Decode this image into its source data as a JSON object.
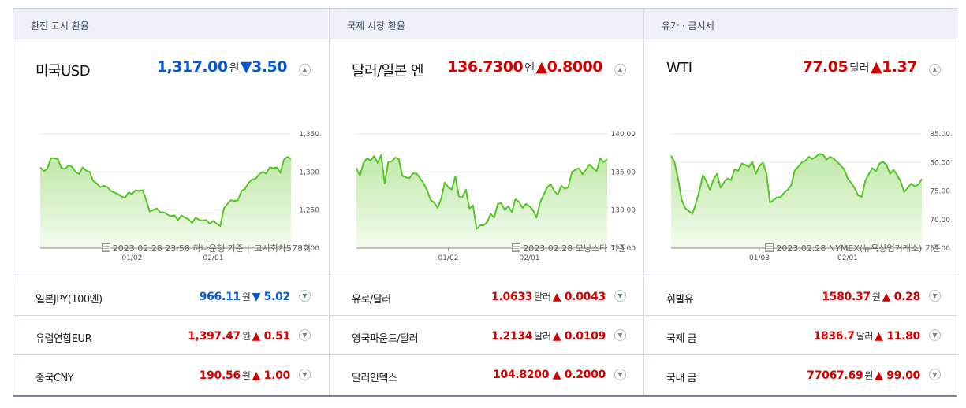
{
  "panels": [
    {
      "header": "환전 고시 환율",
      "main": {
        "name": "미국USD",
        "value": "1,317.00",
        "unit": "원",
        "arrow": "▼",
        "change": "3.50",
        "dir": "down"
      },
      "source": {
        "date": "2023.02.28 23:58",
        "text": "하나은행 기준",
        "extra": "고시회차578회"
      },
      "rows": [
        {
          "name": "일본JPY(100엔)",
          "value": "966.11",
          "unit": "원",
          "arrow": "▼",
          "change": "5.02",
          "dir": "down"
        },
        {
          "name": "유럽연합EUR",
          "value": "1,397.47",
          "unit": "원",
          "arrow": "▲",
          "change": "0.51",
          "dir": "up"
        },
        {
          "name": "중국CNY",
          "value": "190.56",
          "unit": "원",
          "arrow": "▲",
          "change": "1.00",
          "dir": "up"
        }
      ]
    },
    {
      "header": "국제 시장 환율",
      "main": {
        "name": "달러/일본 엔",
        "value": "136.7300",
        "unit": "엔",
        "arrow": "▲",
        "change": "0.8000",
        "dir": "up"
      },
      "source": {
        "date": "2023.02.28",
        "text": "모닝스타 기준",
        "extra": ""
      },
      "rows": [
        {
          "name": "유로/달러",
          "value": "1.0633",
          "unit": "달러",
          "arrow": "▲",
          "change": "0.0043",
          "dir": "up"
        },
        {
          "name": "영국파운드/달러",
          "value": "1.2134",
          "unit": "달러",
          "arrow": "▲",
          "change": "0.0109",
          "dir": "up"
        },
        {
          "name": "달러인덱스",
          "value": "104.8200",
          "unit": "",
          "arrow": "▲",
          "change": "0.2000",
          "dir": "up"
        }
      ]
    },
    {
      "header": "유가 · 금시세",
      "main": {
        "name": "WTI",
        "value": "77.05",
        "unit": "달러",
        "arrow": "▲",
        "change": "1.37",
        "dir": "up"
      },
      "source": {
        "date": "2023.02.28",
        "text": "NYMEX(뉴욕상업거래소) 기준",
        "extra": ""
      },
      "rows": [
        {
          "name": "휘발유",
          "value": "1580.37",
          "unit": "원",
          "arrow": "▲",
          "change": "0.28",
          "dir": "up"
        },
        {
          "name": "국제 금",
          "value": "1836.7",
          "unit": "달러",
          "arrow": "▲",
          "change": "11.80",
          "dir": "up"
        },
        {
          "name": "국내 금",
          "value": "77067.69",
          "unit": "원",
          "arrow": "▲",
          "change": "99.00",
          "dir": "up"
        }
      ]
    }
  ],
  "chart_data": [
    {
      "type": "area",
      "title": "",
      "yticks": [
        "1,350",
        "1,300",
        "1,250",
        "1,200"
      ],
      "ylim": [
        1200,
        1350
      ],
      "xticks": [
        {
          "label": "01/02",
          "index": 26
        },
        {
          "label": "02/01",
          "index": 49
        }
      ],
      "values": [
        1306,
        1301,
        1304,
        1318,
        1318,
        1317,
        1305,
        1304,
        1309,
        1307,
        1300,
        1297,
        1306,
        1302,
        1300,
        1288,
        1285,
        1280,
        1282,
        1280,
        1275,
        1273,
        1271,
        1268,
        1266,
        1273,
        1271,
        1276,
        1275,
        1276,
        1263,
        1248,
        1250,
        1252,
        1247,
        1247,
        1244,
        1242,
        1243,
        1237,
        1243,
        1240,
        1238,
        1233,
        1240,
        1237,
        1236,
        1237,
        1232,
        1236,
        1232,
        1229,
        1252,
        1258,
        1263,
        1262,
        1263,
        1275,
        1278,
        1286,
        1290,
        1291,
        1297,
        1300,
        1298,
        1306,
        1305,
        1306,
        1299,
        1316,
        1320,
        1317
      ],
      "color": "#55c623"
    },
    {
      "type": "area",
      "title": "",
      "yticks": [
        "140.00",
        "135.00",
        "130.00",
        "125.00"
      ],
      "ylim": [
        125,
        140
      ],
      "xticks": [
        {
          "label": "01/02",
          "index": 26
        },
        {
          "label": "02/01",
          "index": 49
        }
      ],
      "values": [
        135.5,
        134.5,
        136.2,
        136.8,
        136.5,
        137.1,
        136.2,
        137.2,
        133.5,
        136.3,
        136.4,
        136.9,
        136.7,
        134.5,
        134.3,
        134.2,
        134.8,
        134.8,
        134.2,
        133.5,
        132.6,
        131.3,
        131.0,
        130.3,
        131.5,
        133.6,
        133.0,
        132.7,
        134.4,
        131.8,
        131.7,
        132.7,
        130.2,
        130.6,
        127.5,
        128.0,
        128.0,
        128.4,
        129.5,
        129.0,
        130.8,
        130.9,
        130.0,
        130.5,
        129.7,
        131.4,
        131.1,
        130.3,
        130.8,
        130.5,
        130.0,
        129.0,
        131.0,
        132.0,
        133.0,
        133.4,
        132.5,
        132.0,
        133.2,
        132.8,
        133.0,
        135.0,
        135.3,
        135.5,
        134.7,
        135.3,
        136.0,
        135.5,
        135.1,
        136.8,
        136.3,
        136.7
      ],
      "color": "#55c623"
    },
    {
      "type": "area",
      "title": "",
      "yticks": [
        "85.00",
        "80.00",
        "75.00",
        "70.00",
        "65.00"
      ],
      "ylim": [
        65,
        85
      ],
      "xticks": [
        {
          "label": "01/03",
          "index": 25
        },
        {
          "label": "02/01",
          "index": 50
        }
      ],
      "values": [
        81.2,
        80.0,
        77.0,
        73.5,
        72.0,
        71.5,
        71.0,
        72.8,
        75.0,
        77.8,
        76.7,
        75.2,
        77.0,
        78.0,
        75.6,
        76.5,
        77.2,
        76.9,
        78.8,
        78.5,
        79.8,
        79.6,
        79.2,
        80.1,
        78.0,
        79.4,
        80.0,
        78.1,
        73.0,
        73.4,
        73.9,
        73.9,
        74.7,
        75.2,
        76.0,
        78.6,
        79.2,
        80.0,
        80.3,
        81.0,
        80.6,
        81.0,
        81.5,
        81.4,
        80.5,
        81.0,
        80.7,
        80.1,
        79.5,
        78.8,
        77.2,
        76.4,
        75.5,
        74.2,
        74.0,
        76.8,
        78.0,
        79.0,
        78.4,
        79.8,
        80.1,
        79.6,
        78.0,
        78.7,
        77.8,
        76.7,
        74.8,
        75.6,
        76.3,
        75.8,
        76.1,
        77.1
      ],
      "color": "#55c623"
    }
  ]
}
